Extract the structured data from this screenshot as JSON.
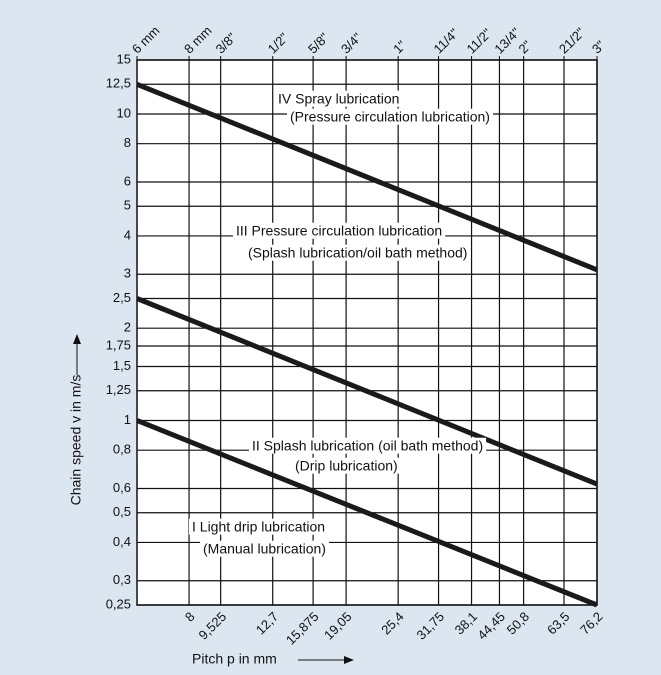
{
  "chart_data": {
    "type": "line",
    "x_label": "Pitch p in mm",
    "y_label": "Chain speed v in m/s",
    "log_x": true,
    "log_y": true,
    "grid": true,
    "xlim": [
      6,
      76.2
    ],
    "ylim": [
      0.25,
      15
    ],
    "xticks": [
      8,
      {
        "value": 9.525,
        "label": "9,525"
      },
      {
        "value": 12.7,
        "label": "12,7"
      },
      {
        "value": 15.875,
        "label": "15,875"
      },
      {
        "value": 19.05,
        "label": "19,05"
      },
      {
        "value": 25.4,
        "label": "25,4"
      },
      {
        "value": 31.75,
        "label": "31,75"
      },
      {
        "value": 38.1,
        "label": "38,1"
      },
      {
        "value": 44.45,
        "label": "44,45"
      },
      {
        "value": 50.8,
        "label": "50,8"
      },
      {
        "value": 63.5,
        "label": "63,5"
      },
      {
        "value": 76.2,
        "label": "76,2"
      }
    ],
    "x2ticks": [
      {
        "value": 6,
        "label": "6 mm"
      },
      {
        "value": 8,
        "label": "8 mm"
      },
      {
        "value": 9.525,
        "label": "3/8\""
      },
      {
        "value": 12.7,
        "label": "1/2\""
      },
      {
        "value": 15.875,
        "label": "5/8\""
      },
      {
        "value": 19.05,
        "label": "3/4\""
      },
      {
        "value": 25.4,
        "label": "1\""
      },
      {
        "value": 31.75,
        "label": "11/4\""
      },
      {
        "value": 38.1,
        "label": "11/2\""
      },
      {
        "value": 44.45,
        "label": "13/4\""
      },
      {
        "value": 50.8,
        "label": "2\""
      },
      {
        "value": 63.5,
        "label": "21/2\""
      },
      {
        "value": 76.2,
        "label": "3\""
      }
    ],
    "yticks": [
      {
        "value": 0.25,
        "label": "0,25"
      },
      {
        "value": 0.3,
        "label": "0,3"
      },
      {
        "value": 0.4,
        "label": "0,4"
      },
      {
        "value": 0.5,
        "label": "0,5"
      },
      {
        "value": 0.6,
        "label": "0,6"
      },
      {
        "value": 0.8,
        "label": "0,8"
      },
      1,
      {
        "value": 1.25,
        "label": "1,25"
      },
      {
        "value": 1.5,
        "label": "1,5"
      },
      {
        "value": 1.75,
        "label": "1,75"
      },
      2,
      {
        "value": 2.5,
        "label": "2,5"
      },
      3,
      4,
      5,
      6,
      8,
      10,
      {
        "value": 12.5,
        "label": "12,5"
      },
      15
    ],
    "x": [
      6,
      76.2
    ],
    "series": [
      {
        "color": "#1a1a1a",
        "values": [
          12.5,
          3.1
        ]
      },
      {
        "color": "#1a1a1a",
        "values": [
          2.5,
          0.62
        ]
      },
      {
        "color": "#1a1a1a",
        "values": [
          1,
          0.25
        ]
      }
    ],
    "annotations": [
      "IV Spray lubrication",
      "(Pressure circulation lubrication)",
      "III  Pressure circulation lubrication",
      "(Splash lubrication/oil bath method)",
      "II Splash lubrication (oil bath method)",
      "(Drip lubrication)",
      "I Light drip lubrication",
      "(Manual lubrication)"
    ]
  }
}
